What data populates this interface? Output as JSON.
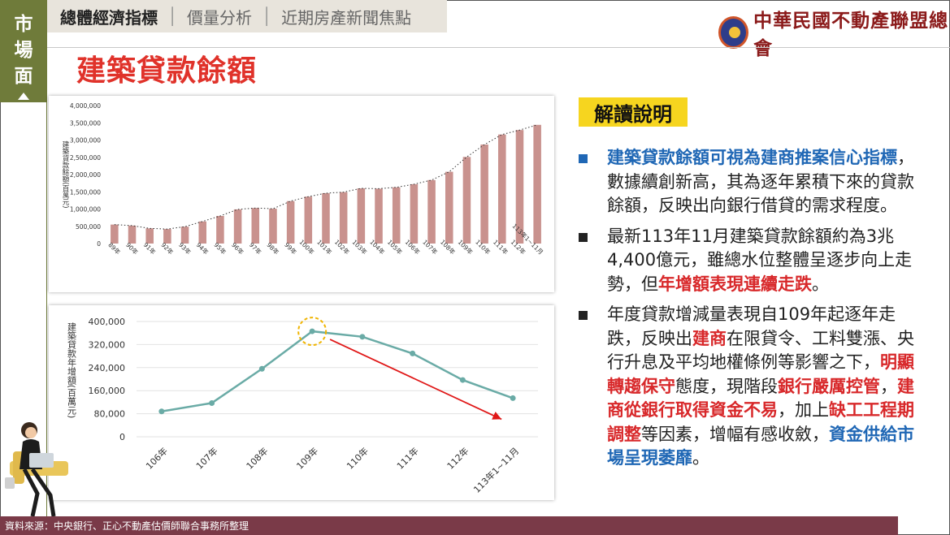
{
  "side_tab": {
    "chars": [
      "市",
      "場",
      "面"
    ]
  },
  "nav": {
    "items": [
      "總體經濟指標",
      "價量分析",
      "近期房產新聞焦點"
    ]
  },
  "org": {
    "name": "中華民國不動產聯盟總會"
  },
  "page_title": "建築貸款餘額",
  "explain": {
    "title": "解讀說明",
    "b1": {
      "hl": "建築貸款餘額可視為建商推案信心指標",
      "rest": "，數據續創新高，其為逐年累積下來的貸款餘額，反映出向銀行借貸的需求程度。"
    },
    "b2": {
      "t1": "最新113年11月建築貸款餘額約為3兆4,400億元，雖總水位整體呈逐步向上走勢，但",
      "hl": "年增額表現連續走跌",
      "t2": "。"
    },
    "b3": {
      "t1": "年度貸款增減量表現自109年起逐年走跌，反映出",
      "h1": "建商",
      "t2": "在限貸令、工料雙漲、央行升息及平均地權條例等影響之下，",
      "h2": "明顯轉趨保守",
      "t3": "態度，現階段",
      "h3": "銀行嚴厲控管",
      "t4": "，",
      "h4": "建商從銀行取得資金不易",
      "t5": "，加上",
      "h5": "缺工工程期調整",
      "t6": "等因素，增幅有感收斂，",
      "h6": "資金供給市場呈現萎靡",
      "t7": "。"
    }
  },
  "footer": {
    "source": "資料來源：中央銀行、正心不動產估價師聯合事務所整理"
  },
  "colors": {
    "bar": "#c9928e",
    "line": "#6aaba6",
    "arrow": "#e01818",
    "highlight_circle": "#f0b400",
    "title": "#e0322a",
    "accent_blue": "#1f67b5"
  },
  "chart_data": [
    {
      "type": "bar",
      "ylabel": "建築貸款餘額(百萬元)",
      "ylim": [
        0,
        4000000
      ],
      "yticks": [
        "0",
        "500,000",
        "1,000,000",
        "1,500,000",
        "2,000,000",
        "2,500,000",
        "3,000,000",
        "3,500,000",
        "4,000,000"
      ],
      "categories": [
        "89年",
        "90年",
        "91年",
        "92年",
        "93年",
        "94年",
        "95年",
        "96年",
        "97年",
        "98年",
        "99年",
        "100年",
        "101年",
        "102年",
        "103年",
        "104年",
        "105年",
        "106年",
        "107年",
        "108年",
        "109年",
        "110年",
        "111年",
        "112年",
        "113年1~11月"
      ],
      "values": [
        550000,
        520000,
        440000,
        420000,
        490000,
        640000,
        800000,
        990000,
        1030000,
        1010000,
        1230000,
        1360000,
        1460000,
        1490000,
        1600000,
        1590000,
        1630000,
        1720000,
        1840000,
        2080000,
        2510000,
        2870000,
        3160000,
        3290000,
        3440000
      ],
      "trendline": "dotted",
      "grid": false
    },
    {
      "type": "line",
      "ylabel": "建築貸款年增額(百萬元)",
      "ylim": [
        0,
        400000
      ],
      "yticks": [
        "0",
        "80,000",
        "160,000",
        "240,000",
        "320,000",
        "400,000"
      ],
      "categories": [
        "106年",
        "107年",
        "108年",
        "109年",
        "110年",
        "111年",
        "112年",
        "113年1~11月"
      ],
      "values": [
        88000,
        117000,
        236000,
        366000,
        347000,
        289000,
        197000,
        134000
      ],
      "annotations": [
        "peak circled at 109年",
        "red arrow pointing downward from 109年 toward 113年"
      ],
      "grid": true
    }
  ]
}
